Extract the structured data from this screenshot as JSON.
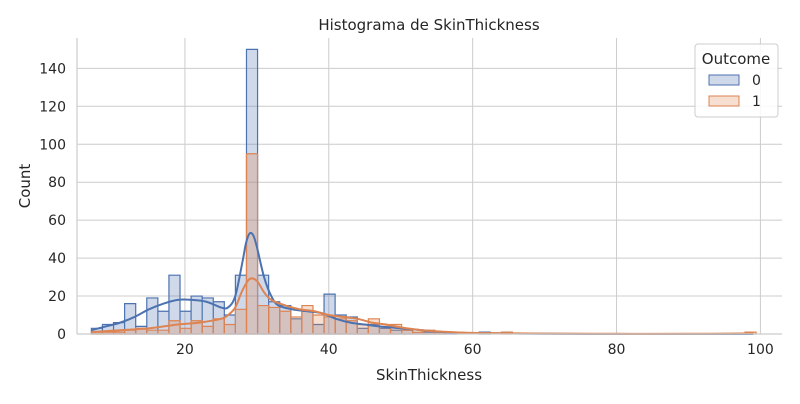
{
  "chart_data": {
    "type": "histogram",
    "title": "Histograma de SkinThickness",
    "xlabel": "SkinThickness",
    "ylabel": "Count",
    "xlim": [
      5,
      103
    ],
    "ylim": [
      0,
      156
    ],
    "x_ticks": [
      20,
      40,
      60,
      80,
      100
    ],
    "y_ticks": [
      0,
      20,
      40,
      60,
      80,
      100,
      120,
      140
    ],
    "grid": true,
    "element": "step",
    "kde": true,
    "bin_edges": [
      7.0,
      8.54,
      10.08,
      11.62,
      13.16,
      14.7,
      16.24,
      17.78,
      19.32,
      20.86,
      22.4,
      23.94,
      25.48,
      27.02,
      28.56,
      30.1,
      31.64,
      33.18,
      34.72,
      36.26,
      37.8,
      39.34,
      40.88,
      42.42,
      43.96,
      45.5,
      47.04,
      48.58,
      50.12,
      51.66,
      53.2,
      54.74,
      56.28,
      57.82,
      59.36,
      60.9,
      62.44,
      63.98,
      65.52,
      67.06,
      68.6,
      70.14,
      71.68,
      73.22,
      74.76,
      76.3,
      77.84,
      79.38,
      80.92,
      82.46,
      84.0,
      85.54,
      87.08,
      88.62,
      90.16,
      91.7,
      93.24,
      94.78,
      96.32,
      97.86,
      99.4
    ],
    "legend": {
      "title": "Outcome",
      "placement": "top-right"
    },
    "series": [
      {
        "name": "0",
        "color": "#4c72b0",
        "fill": "rgba(76,114,176,0.27)",
        "values": [
          3,
          5,
          6,
          16,
          4,
          19,
          12,
          31,
          12,
          20,
          19,
          17,
          10,
          31,
          150,
          31,
          17,
          15,
          8,
          12,
          5,
          21,
          10,
          9,
          3,
          5,
          3,
          2,
          2,
          1,
          1,
          1,
          1,
          0,
          0,
          1,
          0,
          0,
          0,
          0,
          0,
          0,
          0,
          0,
          0,
          0,
          0,
          0,
          0,
          0,
          0,
          0,
          0,
          0,
          0,
          0,
          0,
          0,
          0,
          0
        ],
        "kde_x": [
          7,
          9,
          11,
          13,
          15,
          17,
          19,
          21,
          23,
          25,
          26,
          27,
          28,
          28.5,
          29,
          29.5,
          30,
          31,
          32,
          33,
          35,
          37,
          39,
          41,
          43,
          45,
          47,
          50,
          53,
          56,
          60,
          65,
          70,
          80,
          90,
          99
        ],
        "kde_y": [
          2,
          4,
          6,
          9,
          13,
          16,
          18,
          18,
          17,
          14,
          14,
          20,
          38,
          48,
          53,
          52,
          46,
          30,
          20,
          15,
          13,
          12,
          11,
          8,
          6,
          5,
          4,
          3,
          2,
          1,
          0.5,
          0.3,
          0.1,
          0,
          0,
          0
        ]
      },
      {
        "name": "1",
        "color": "#dd8452",
        "fill": "rgba(221,132,82,0.27)",
        "values": [
          1,
          1,
          1,
          2,
          3,
          2,
          2,
          7,
          3,
          7,
          4,
          8,
          5,
          13,
          95,
          15,
          14,
          12,
          9,
          15,
          10,
          9,
          8,
          7,
          5,
          8,
          4,
          5,
          2,
          1,
          2,
          1,
          0,
          0,
          0,
          0,
          0,
          1,
          0,
          0,
          0,
          0,
          0,
          0,
          0,
          0,
          0,
          0,
          0,
          0,
          0,
          0,
          0,
          0,
          0,
          0,
          0,
          0,
          0,
          1
        ],
        "kde_x": [
          7,
          11,
          15,
          19,
          22,
          25,
          26,
          27,
          28,
          29,
          30,
          31,
          32,
          34,
          36,
          38,
          40,
          42,
          44,
          46,
          48,
          50,
          53,
          56,
          60,
          65,
          70,
          80,
          90,
          99
        ],
        "kde_y": [
          1,
          2,
          3,
          5,
          6,
          8,
          10,
          14,
          23,
          29,
          28,
          22,
          18,
          15,
          13,
          12,
          10,
          9,
          8,
          6,
          5,
          3.5,
          2,
          1.2,
          0.6,
          0.4,
          0.2,
          0.1,
          0.1,
          0.3
        ]
      }
    ]
  }
}
